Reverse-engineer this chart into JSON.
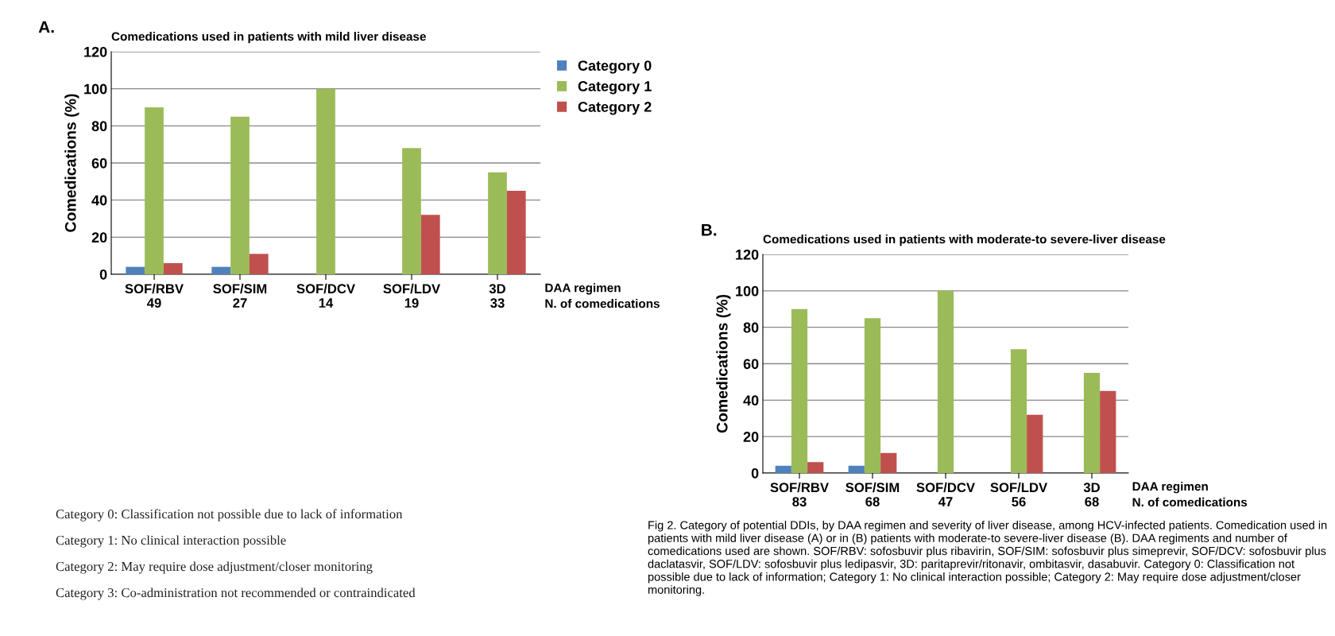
{
  "chart_data": [
    {
      "type": "bar",
      "title": "Comedications used in patients with mild liver disease",
      "ylabel": "Comedications (%)",
      "xlabel": "DAA regimen\nN. of comedications",
      "categories": [
        "SOF/RBV\n49",
        "SOF/SIM\n27",
        "SOF/DCV\n14",
        "SOF/LDV\n19",
        "3D\n33"
      ],
      "series": [
        {
          "name": "Category 0",
          "color": "#4f81bd",
          "values": [
            4,
            4,
            null,
            null,
            null
          ]
        },
        {
          "name": "Category 1",
          "color": "#9bbb59",
          "values": [
            90,
            85,
            100,
            68,
            55
          ]
        },
        {
          "name": "Category 2",
          "color": "#c0504d",
          "values": [
            6,
            11,
            null,
            32,
            45
          ]
        }
      ],
      "ylim": [
        0,
        120
      ],
      "yticks": [
        0,
        20,
        40,
        60,
        80,
        100,
        120
      ],
      "grid": "y",
      "legend": "top right",
      "annotations": [
        "A.",
        "Category 0: Classification not possible due to lack of information",
        "Category 1: No clinical interaction possible",
        "Category 2: May require dose adjustment/closer monitoring",
        "Category 3: Co-administration not recommended or contraindicated"
      ]
    },
    {
      "type": "bar",
      "title": "Comedications used in patients with moderate-to severe-liver disease",
      "ylabel": "Comedications (%)",
      "xlabel": "DAA regimen\nN. of comedications",
      "categories": [
        "SOF/RBV\n83",
        "SOF/SIM\n68",
        "SOF/DCV\n47",
        "SOF/LDV\n56",
        "3D\n68"
      ],
      "series": [
        {
          "color": "#4f81bd",
          "values": [
            4,
            4,
            null,
            null,
            null
          ]
        },
        {
          "color": "#9bbb59",
          "values": [
            90,
            85,
            100,
            68,
            55
          ]
        },
        {
          "color": "#c0504d",
          "values": [
            6,
            11,
            null,
            32,
            45
          ]
        }
      ],
      "ylim": [
        0,
        120
      ],
      "yticks": [
        0,
        20,
        40,
        60,
        80,
        100,
        120
      ],
      "grid": "y",
      "annotations": [
        "B.",
        "Fig 2. Category of potential DDIs, by DAA regimen and severity of liver disease, among HCV-infected patients. Comedication used in patients with mild liver disease (A) or in (B) patients with moderate-to severe-liver disease (B). DAA regiments and number of comedications used are shown. SOF/RBV: sofosbuvir plus ribavirin, SOF/SIM: sofosbuvir plus simeprevir, SOF/DCV: sofosbuvir plus daclatasvir, SOF/LDV: sofosbuvir plus ledipasvir, 3D: paritaprevir/ritonavir, ombitasvir, dasabuvir. Category 0: Classification not possible due to lack of information; Category 1: No clinical interaction possible; Category 2: May require dose adjustment/closer monitoring."
      ]
    }
  ]
}
